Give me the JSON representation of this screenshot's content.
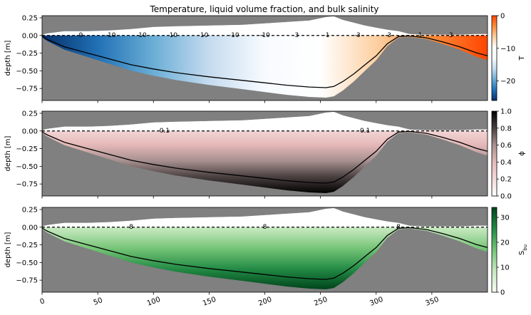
{
  "chart_data": {
    "type": "heatmap",
    "title": "Temperature, liquid volume fraction, and bulk salinity",
    "x_ticks": [
      0,
      50,
      100,
      150,
      200,
      250,
      300,
      350
    ],
    "x_tick_labels": [
      "0",
      "50",
      "100",
      "150",
      "200",
      "250",
      "300",
      "350"
    ],
    "xlim": [
      0,
      400
    ],
    "ylim": [
      -0.92,
      0.28
    ],
    "y_ticks": [
      0.25,
      0.0,
      -0.25,
      -0.5,
      -0.75
    ],
    "y_tick_labels": [
      "0.25",
      "0.00",
      "−0.25",
      "−0.50",
      "−0.75"
    ],
    "ylabel": "depth [m]",
    "grid": false,
    "background_color": "#808080",
    "panels": [
      {
        "variable": "T",
        "colorbar_label": "T",
        "colorbar_range": [
          -26,
          0
        ],
        "colorbar_ticks": [
          0,
          -10,
          -20
        ],
        "colorbar_tick_labels": [
          "0",
          "−10",
          "−20"
        ],
        "colormap": [
          "#08306b",
          "#2171b5",
          "#6baed6",
          "#c6dbef",
          "#f7fbff",
          "#ffffff",
          "#fdd0a2",
          "#fd8d3c",
          "#ff4500"
        ],
        "contour_labels": [
          "-9",
          "-10",
          "-10",
          "-10",
          "-10",
          "-10",
          "-10",
          "-3",
          "-1",
          "-3",
          "-3",
          "-1",
          "-3"
        ]
      },
      {
        "variable": "ϕ",
        "colorbar_label": "ϕ",
        "colorbar_range": [
          0,
          1.0
        ],
        "colorbar_ticks": [
          0.0,
          0.2,
          0.4,
          0.6,
          0.8,
          1.0
        ],
        "colorbar_tick_labels": [
          "0.0",
          "0.2",
          "0.4",
          "0.6",
          "0.8",
          "1.0"
        ],
        "colormap": [
          "#ffffff",
          "#f4dada",
          "#e6b9b9",
          "#a89090",
          "#4a4040",
          "#000000"
        ],
        "contour_labels": [
          "0.1",
          "0.1"
        ]
      },
      {
        "variable": "S_bu",
        "colorbar_label": "S",
        "colorbar_label_sub": "bu",
        "colorbar_range": [
          0,
          34
        ],
        "colorbar_ticks": [
          0,
          10,
          20,
          30
        ],
        "colorbar_tick_labels": [
          "0",
          "10",
          "20",
          "30"
        ],
        "colormap": [
          "#f7fcf5",
          "#c7e9c0",
          "#74c476",
          "#238b45",
          "#00441b"
        ],
        "contour_labels": [
          "8",
          "8",
          "8"
        ]
      }
    ],
    "profile": {
      "x": [
        0,
        2,
        5,
        10,
        20,
        40,
        60,
        80,
        100,
        120,
        150,
        180,
        200,
        220,
        240,
        255,
        262,
        270,
        280,
        290,
        300,
        310,
        320,
        330,
        345,
        360,
        375,
        390,
        400
      ],
      "top": [
        0.0,
        0.02,
        0.03,
        0.04,
        0.06,
        0.06,
        0.07,
        0.09,
        0.12,
        0.13,
        0.14,
        0.15,
        0.17,
        0.19,
        0.21,
        0.26,
        0.27,
        0.22,
        0.18,
        0.14,
        0.11,
        0.08,
        0.06,
        0.02,
        0.01,
        0.01,
        0.01,
        0.02,
        0.02
      ],
      "bottom": [
        -0.02,
        -0.05,
        -0.08,
        -0.12,
        -0.2,
        -0.3,
        -0.4,
        -0.5,
        -0.57,
        -0.63,
        -0.7,
        -0.76,
        -0.8,
        -0.84,
        -0.87,
        -0.88,
        -0.86,
        -0.78,
        -0.65,
        -0.5,
        -0.35,
        -0.15,
        -0.03,
        -0.02,
        -0.05,
        -0.12,
        -0.2,
        -0.3,
        -0.35
      ]
    }
  }
}
